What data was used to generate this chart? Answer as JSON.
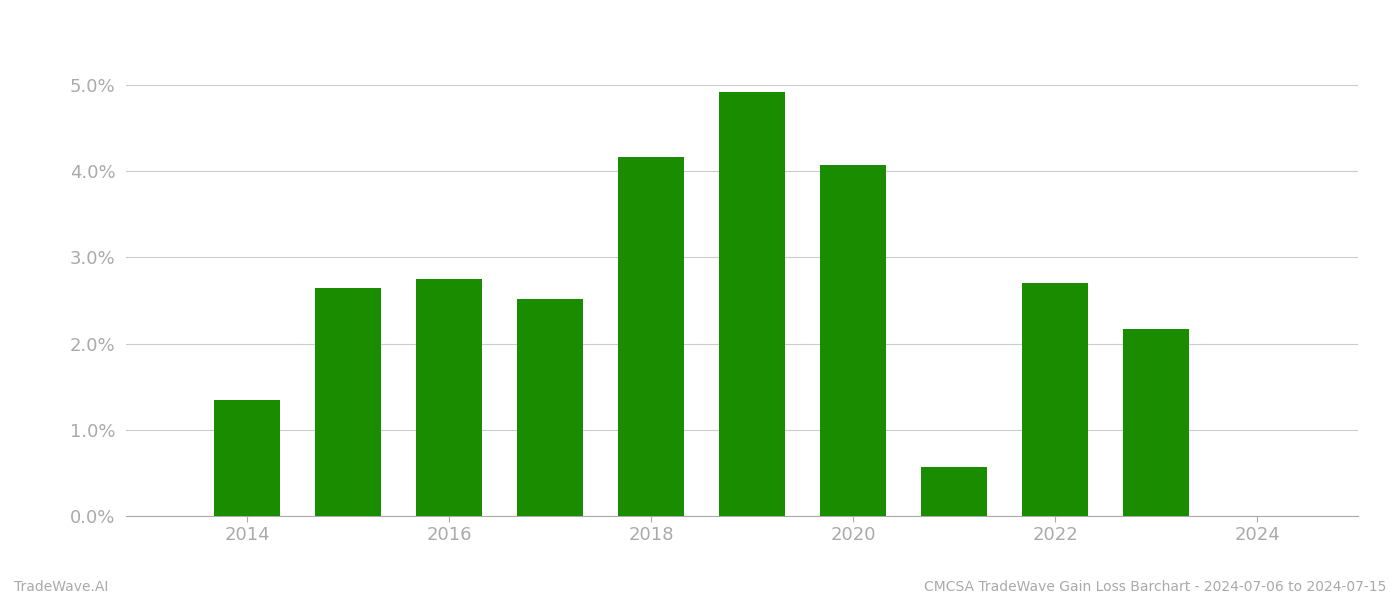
{
  "years": [
    2014,
    2015,
    2016,
    2017,
    2018,
    2019,
    2020,
    2021,
    2022,
    2023
  ],
  "values": [
    1.35,
    2.65,
    2.75,
    2.52,
    4.17,
    4.92,
    4.07,
    0.57,
    2.7,
    2.17
  ],
  "bar_color": "#1a8c00",
  "background_color": "#ffffff",
  "grid_color": "#cccccc",
  "axis_color": "#aaaaaa",
  "tick_label_color": "#aaaaaa",
  "ylim": [
    0.0,
    5.5
  ],
  "yticks": [
    0.0,
    1.0,
    2.0,
    3.0,
    4.0,
    5.0
  ],
  "xticks": [
    2014,
    2016,
    2018,
    2020,
    2022,
    2024
  ],
  "xlim": [
    2012.8,
    2025.0
  ],
  "footer_left": "TradeWave.AI",
  "footer_right": "CMCSA TradeWave Gain Loss Barchart - 2024-07-06 to 2024-07-15",
  "footer_color": "#aaaaaa",
  "footer_fontsize": 10,
  "tick_fontsize": 13,
  "bar_width": 0.65
}
